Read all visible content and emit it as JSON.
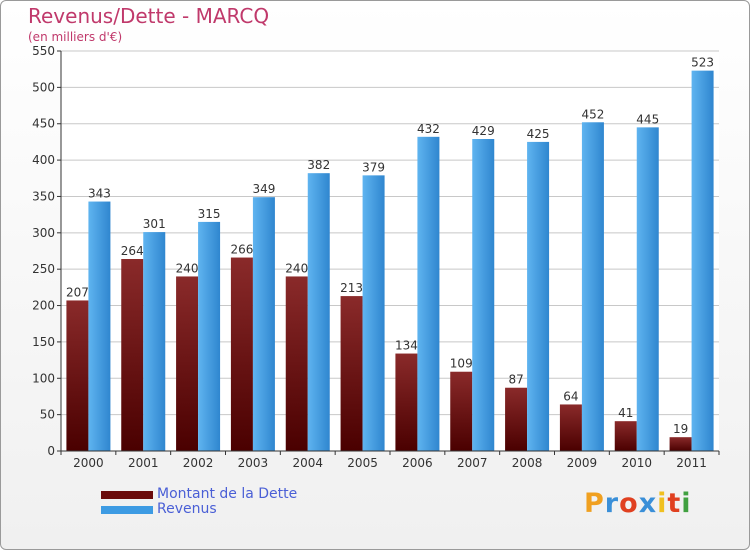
{
  "page": {
    "title": "Revenus/Dette - MARCQ",
    "subtitle": "(en milliers d'€)"
  },
  "chart_data": {
    "type": "bar",
    "categories": [
      "2000",
      "2001",
      "2002",
      "2003",
      "2004",
      "2005",
      "2006",
      "2007",
      "2008",
      "2009",
      "2010",
      "2011"
    ],
    "series": [
      {
        "name": "Montant de la Dette",
        "color": "#7a1010",
        "values": [
          207,
          264,
          240,
          266,
          240,
          213,
          134,
          109,
          87,
          64,
          41,
          19
        ]
      },
      {
        "name": "Revenus",
        "color": "#3d9be3",
        "values": [
          343,
          301,
          315,
          349,
          382,
          379,
          432,
          429,
          425,
          452,
          445,
          523
        ]
      }
    ],
    "ylim": [
      0,
      550
    ],
    "yticks": [
      0,
      50,
      100,
      150,
      200,
      250,
      300,
      350,
      400,
      450,
      500,
      550
    ],
    "grid": true,
    "legend_position": "bottom-left"
  },
  "legend": {
    "debt_label": "Montant de la Dette",
    "debt_color": "#6b0b0b",
    "revenue_label": "Revenus",
    "revenue_color": "#3d9be3"
  },
  "logo": {
    "text": "Proxiti"
  }
}
